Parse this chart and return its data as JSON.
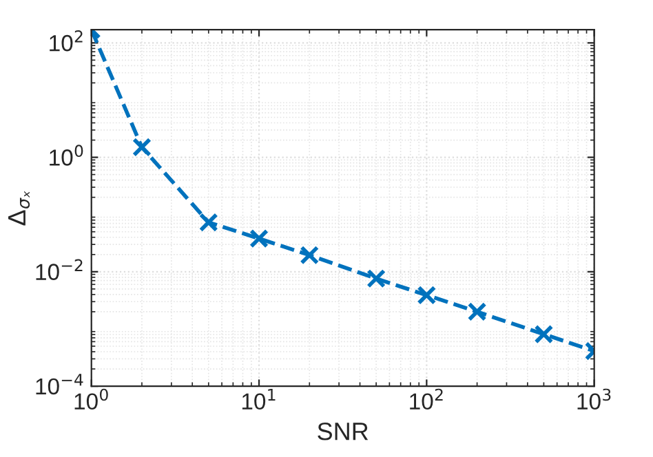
{
  "chart_data": {
    "type": "line",
    "xlabel": "SNR",
    "ylabel": "Δ$_{σₓ}$",
    "x": [
      1,
      2,
      5,
      10,
      20,
      50,
      100,
      200,
      500,
      1000
    ],
    "series": [
      {
        "color": "#0072bd",
        "values": [
          170,
          1.5,
          0.073,
          0.038,
          0.0195,
          0.0076,
          0.0039,
          0.002,
          0.00081,
          0.00041
        ]
      }
    ],
    "log": "xy",
    "xlim": [
      1,
      1000
    ],
    "ylim": [
      0.0001,
      170
    ],
    "xticks": [
      {
        "value": 1,
        "label": "10$^{0}$"
      },
      {
        "value": 10,
        "label": "10$^{1}$"
      },
      {
        "value": 100,
        "label": "10$^{2}$"
      },
      {
        "value": 1000,
        "label": "10$^{3}$"
      }
    ],
    "yticks": [
      {
        "value": 0.0001,
        "label": "10$^{−4}$"
      },
      {
        "value": 0.01,
        "label": "10$^{−2}$"
      },
      {
        "value": 1,
        "label": "10$^{0}$"
      },
      {
        "value": 100,
        "label": "10$^{2}$"
      }
    ],
    "grid": true,
    "marker": "cross",
    "line_style": "dashed"
  }
}
